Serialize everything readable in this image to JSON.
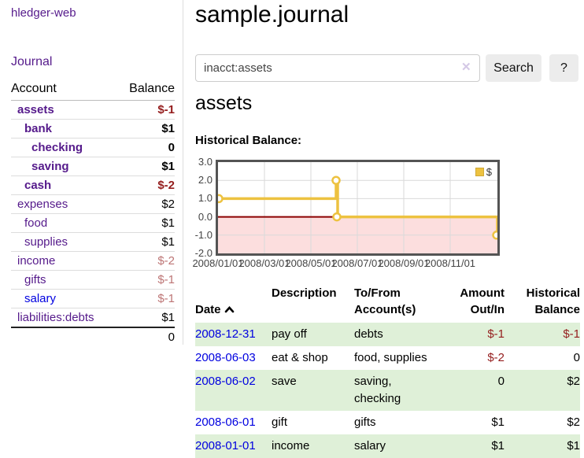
{
  "app": {
    "title": "hledger-web"
  },
  "colors": {
    "link_purple": "#551a8b",
    "link_blue": "#0000e0",
    "negative": "#941d1d",
    "negative_muted": "#bd7575",
    "row_highlight_green": "#dff0d8",
    "series_gold": "#edc240",
    "negative_region_pink": "#fcdede",
    "zero_line_red": "#8b0000",
    "chart_border": "#545454"
  },
  "sidebar": {
    "journal_link": "Journal",
    "accounts_table": {
      "headers": {
        "account": "Account",
        "balance": "Balance"
      },
      "rows": [
        {
          "name": "assets",
          "balance": "$-1",
          "indent": 0,
          "bold": true,
          "blue": false,
          "balance_class": "neg-strong"
        },
        {
          "name": "bank",
          "balance": "$1",
          "indent": 1,
          "bold": true,
          "blue": false,
          "balance_class": ""
        },
        {
          "name": "checking",
          "balance": "0",
          "indent": 2,
          "bold": true,
          "blue": false,
          "balance_class": ""
        },
        {
          "name": "saving",
          "balance": "$1",
          "indent": 2,
          "bold": true,
          "blue": false,
          "balance_class": ""
        },
        {
          "name": "cash",
          "balance": "$-2",
          "indent": 1,
          "bold": true,
          "blue": false,
          "balance_class": "neg-strong"
        },
        {
          "name": "expenses",
          "balance": "$2",
          "indent": 0,
          "bold": false,
          "blue": false,
          "balance_class": ""
        },
        {
          "name": "food",
          "balance": "$1",
          "indent": 1,
          "bold": false,
          "blue": false,
          "balance_class": ""
        },
        {
          "name": "supplies",
          "balance": "$1",
          "indent": 1,
          "bold": false,
          "blue": false,
          "balance_class": ""
        },
        {
          "name": "income",
          "balance": "$-2",
          "indent": 0,
          "bold": false,
          "blue": false,
          "balance_class": "neg-soft"
        },
        {
          "name": "gifts",
          "balance": "$-1",
          "indent": 1,
          "bold": false,
          "blue": false,
          "balance_class": "neg-soft"
        },
        {
          "name": "salary",
          "balance": "$-1",
          "indent": 1,
          "bold": false,
          "blue": true,
          "balance_class": "neg-soft"
        },
        {
          "name": "liabilities:debts",
          "balance": "$1",
          "indent": 0,
          "bold": false,
          "blue": false,
          "balance_class": ""
        }
      ],
      "total": "0"
    }
  },
  "main": {
    "title": "sample.journal",
    "search": {
      "value": "inacct:assets",
      "clear_icon": "✕",
      "button_label": "Search",
      "help_label": "?"
    },
    "account_heading": "assets",
    "chart_label": "Historical Balance:"
  },
  "chart_data": {
    "type": "line",
    "style": "step-with-markers",
    "title": "Historical Balance:",
    "series": [
      {
        "name": "$",
        "color": "#edc240",
        "points": [
          {
            "x": "2008-01-01",
            "y": 1
          },
          {
            "x": "2008-06-01",
            "y": 2
          },
          {
            "x": "2008-06-03",
            "y": 0
          },
          {
            "x": "2008-12-31",
            "y": -1
          }
        ]
      }
    ],
    "x_ticks": [
      "2008/01/01",
      "2008/03/01",
      "2008/05/01",
      "2008/07/01",
      "2008/09/01",
      "2008/11/01"
    ],
    "y_ticks": [
      "3.0",
      "2.0",
      "1.0",
      "0.0",
      "-1.0",
      "-2.0"
    ],
    "ylim": [
      -2,
      3
    ],
    "grid": true,
    "negative_region_shaded": true,
    "legend": {
      "label": "$",
      "position": "top-right"
    }
  },
  "register": {
    "headers": {
      "date": "Date",
      "description": "Description",
      "accounts": "To/From\nAccount(s)",
      "amount": "Amount\nOut/In",
      "historical": "Historical\nBalance"
    },
    "rows": [
      {
        "date": "2008-12-31",
        "description": "pay off",
        "accounts": "debts",
        "amount": "$-1",
        "amount_negative": true,
        "balance": "$-1",
        "balance_negative": true,
        "highlight": true
      },
      {
        "date": "2008-06-03",
        "description": "eat & shop",
        "accounts": "food, supplies",
        "amount": "$-2",
        "amount_negative": true,
        "balance": "0",
        "balance_negative": false,
        "highlight": false
      },
      {
        "date": "2008-06-02",
        "description": "save",
        "accounts": "saving,\nchecking",
        "amount": "0",
        "amount_negative": false,
        "balance": "$2",
        "balance_negative": false,
        "highlight": true
      },
      {
        "date": "2008-06-01",
        "description": "gift",
        "accounts": "gifts",
        "amount": "$1",
        "amount_negative": false,
        "balance": "$2",
        "balance_negative": false,
        "highlight": false
      },
      {
        "date": "2008-01-01",
        "description": "income",
        "accounts": "salary",
        "amount": "$1",
        "amount_negative": false,
        "balance": "$1",
        "balance_negative": false,
        "highlight": true
      }
    ]
  }
}
